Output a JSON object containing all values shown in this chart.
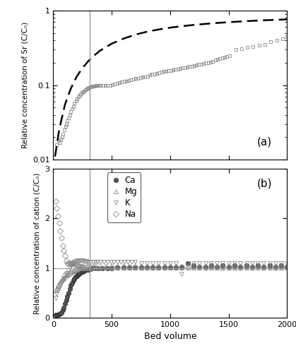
{
  "vline_x": 310,
  "xlim": [
    0,
    2000
  ],
  "panel_a": {
    "ylim_log": [
      0.01,
      1.0
    ],
    "ylabel": "Relative concentration of Sr (C/C₀)",
    "label": "(a)",
    "sr_data": [
      [
        30,
        0.016
      ],
      [
        45,
        0.018
      ],
      [
        55,
        0.017
      ],
      [
        65,
        0.019
      ],
      [
        75,
        0.02
      ],
      [
        85,
        0.022
      ],
      [
        95,
        0.025
      ],
      [
        105,
        0.028
      ],
      [
        115,
        0.03
      ],
      [
        120,
        0.033
      ],
      [
        130,
        0.036
      ],
      [
        140,
        0.04
      ],
      [
        150,
        0.044
      ],
      [
        160,
        0.048
      ],
      [
        170,
        0.052
      ],
      [
        180,
        0.057
      ],
      [
        195,
        0.062
      ],
      [
        205,
        0.065
      ],
      [
        215,
        0.07
      ],
      [
        225,
        0.073
      ],
      [
        235,
        0.077
      ],
      [
        245,
        0.08
      ],
      [
        255,
        0.082
      ],
      [
        265,
        0.084
      ],
      [
        275,
        0.086
      ],
      [
        285,
        0.088
      ],
      [
        295,
        0.09
      ],
      [
        305,
        0.092
      ],
      [
        315,
        0.094
      ],
      [
        325,
        0.095
      ],
      [
        335,
        0.096
      ],
      [
        345,
        0.097
      ],
      [
        355,
        0.098
      ],
      [
        365,
        0.1
      ],
      [
        375,
        0.1
      ],
      [
        385,
        0.1
      ],
      [
        395,
        0.1
      ],
      [
        405,
        0.1
      ],
      [
        425,
        0.1
      ],
      [
        445,
        0.1
      ],
      [
        465,
        0.1
      ],
      [
        485,
        0.1
      ],
      [
        505,
        0.102
      ],
      [
        525,
        0.104
      ],
      [
        545,
        0.106
      ],
      [
        565,
        0.108
      ],
      [
        585,
        0.11
      ],
      [
        605,
        0.112
      ],
      [
        625,
        0.114
      ],
      [
        645,
        0.116
      ],
      [
        665,
        0.118
      ],
      [
        685,
        0.12
      ],
      [
        705,
        0.122
      ],
      [
        725,
        0.124
      ],
      [
        745,
        0.126
      ],
      [
        765,
        0.128
      ],
      [
        785,
        0.13
      ],
      [
        805,
        0.133
      ],
      [
        825,
        0.136
      ],
      [
        845,
        0.139
      ],
      [
        865,
        0.142
      ],
      [
        885,
        0.145
      ],
      [
        905,
        0.148
      ],
      [
        925,
        0.15
      ],
      [
        945,
        0.152
      ],
      [
        965,
        0.154
      ],
      [
        985,
        0.156
      ],
      [
        1005,
        0.158
      ],
      [
        1025,
        0.16
      ],
      [
        1045,
        0.162
      ],
      [
        1065,
        0.165
      ],
      [
        1085,
        0.167
      ],
      [
        1105,
        0.17
      ],
      [
        1125,
        0.172
      ],
      [
        1145,
        0.175
      ],
      [
        1165,
        0.178
      ],
      [
        1185,
        0.18
      ],
      [
        1205,
        0.183
      ],
      [
        1225,
        0.186
      ],
      [
        1245,
        0.189
      ],
      [
        1265,
        0.192
      ],
      [
        1285,
        0.195
      ],
      [
        1305,
        0.198
      ],
      [
        1325,
        0.2
      ],
      [
        1345,
        0.205
      ],
      [
        1365,
        0.21
      ],
      [
        1385,
        0.215
      ],
      [
        1405,
        0.22
      ],
      [
        1425,
        0.225
      ],
      [
        1445,
        0.23
      ],
      [
        1465,
        0.235
      ],
      [
        1485,
        0.24
      ],
      [
        1510,
        0.245
      ],
      [
        1560,
        0.3
      ],
      [
        1610,
        0.31
      ],
      [
        1660,
        0.32
      ],
      [
        1710,
        0.33
      ],
      [
        1760,
        0.34
      ],
      [
        1810,
        0.35
      ],
      [
        1860,
        0.38
      ],
      [
        1910,
        0.4
      ],
      [
        1960,
        0.42
      ],
      [
        2000,
        0.45
      ]
    ],
    "fit_x": [
      15,
      50,
      100,
      150,
      200,
      250,
      300,
      350,
      400,
      500,
      600,
      700,
      800,
      900,
      1000,
      1100,
      1200,
      1300,
      1400,
      1500,
      1600,
      1700,
      1800,
      1900,
      2000
    ],
    "fit_y": [
      0.011,
      0.025,
      0.055,
      0.09,
      0.13,
      0.17,
      0.21,
      0.25,
      0.29,
      0.36,
      0.42,
      0.475,
      0.52,
      0.558,
      0.59,
      0.618,
      0.642,
      0.663,
      0.682,
      0.699,
      0.714,
      0.728,
      0.741,
      0.752,
      0.762
    ]
  },
  "panel_b": {
    "ylim": [
      0,
      3
    ],
    "yticks": [
      0,
      1,
      2,
      3
    ],
    "ylabel": "Relative concentration of cation (C/C₀)",
    "xlabel": "Bed volume",
    "label": "(b)",
    "ca_data": [
      [
        20,
        0.05
      ],
      [
        30,
        0.05
      ],
      [
        40,
        0.06
      ],
      [
        50,
        0.07
      ],
      [
        60,
        0.08
      ],
      [
        70,
        0.1
      ],
      [
        80,
        0.15
      ],
      [
        90,
        0.2
      ],
      [
        100,
        0.28
      ],
      [
        110,
        0.35
      ],
      [
        120,
        0.42
      ],
      [
        130,
        0.5
      ],
      [
        140,
        0.58
      ],
      [
        150,
        0.65
      ],
      [
        160,
        0.7
      ],
      [
        170,
        0.75
      ],
      [
        180,
        0.78
      ],
      [
        190,
        0.82
      ],
      [
        200,
        0.84
      ],
      [
        210,
        0.86
      ],
      [
        220,
        0.88
      ],
      [
        230,
        0.9
      ],
      [
        240,
        0.92
      ],
      [
        250,
        0.93
      ],
      [
        260,
        0.94
      ],
      [
        270,
        0.95
      ],
      [
        280,
        0.96
      ],
      [
        290,
        0.97
      ],
      [
        300,
        0.97
      ],
      [
        310,
        0.98
      ],
      [
        320,
        0.98
      ],
      [
        330,
        0.99
      ],
      [
        340,
        0.99
      ],
      [
        350,
        1.0
      ],
      [
        380,
        1.0
      ],
      [
        420,
        1.0
      ],
      [
        460,
        1.0
      ],
      [
        500,
        1.0
      ],
      [
        550,
        1.01
      ],
      [
        600,
        1.01
      ],
      [
        650,
        1.01
      ],
      [
        700,
        1.01
      ],
      [
        750,
        1.01
      ],
      [
        800,
        1.01
      ],
      [
        850,
        1.01
      ],
      [
        900,
        1.01
      ],
      [
        950,
        1.01
      ],
      [
        1000,
        1.01
      ],
      [
        1050,
        1.01
      ],
      [
        1100,
        1.02
      ],
      [
        1150,
        1.1
      ],
      [
        1200,
        1.05
      ],
      [
        1250,
        1.02
      ],
      [
        1300,
        1.02
      ],
      [
        1350,
        1.05
      ],
      [
        1400,
        1.02
      ],
      [
        1450,
        1.05
      ],
      [
        1500,
        1.02
      ],
      [
        1550,
        1.05
      ],
      [
        1600,
        1.02
      ],
      [
        1650,
        1.05
      ],
      [
        1700,
        1.02
      ],
      [
        1750,
        1.05
      ],
      [
        1800,
        1.02
      ],
      [
        1850,
        1.05
      ],
      [
        1900,
        1.02
      ],
      [
        1950,
        1.05
      ],
      [
        2000,
        1.02
      ]
    ],
    "mg_data": [
      [
        20,
        0.55
      ],
      [
        30,
        0.6
      ],
      [
        40,
        0.65
      ],
      [
        50,
        0.7
      ],
      [
        60,
        0.72
      ],
      [
        70,
        0.75
      ],
      [
        80,
        0.78
      ],
      [
        90,
        0.8
      ],
      [
        100,
        0.83
      ],
      [
        110,
        0.85
      ],
      [
        120,
        0.87
      ],
      [
        130,
        0.88
      ],
      [
        140,
        0.9
      ],
      [
        150,
        0.92
      ],
      [
        160,
        0.93
      ],
      [
        170,
        0.94
      ],
      [
        180,
        0.95
      ],
      [
        190,
        0.96
      ],
      [
        200,
        0.97
      ],
      [
        210,
        0.98
      ],
      [
        220,
        0.99
      ],
      [
        230,
        1.0
      ],
      [
        240,
        1.0
      ],
      [
        250,
        1.0
      ],
      [
        260,
        1.0
      ],
      [
        280,
        1.0
      ],
      [
        300,
        1.0
      ],
      [
        320,
        1.0
      ],
      [
        340,
        1.0
      ],
      [
        360,
        1.0
      ],
      [
        380,
        1.0
      ],
      [
        400,
        1.0
      ],
      [
        450,
        1.01
      ],
      [
        500,
        1.01
      ],
      [
        550,
        1.01
      ],
      [
        600,
        1.01
      ],
      [
        650,
        1.01
      ],
      [
        700,
        1.01
      ],
      [
        750,
        1.01
      ],
      [
        800,
        1.01
      ],
      [
        850,
        1.01
      ],
      [
        900,
        1.01
      ],
      [
        950,
        1.01
      ],
      [
        1000,
        1.01
      ],
      [
        1050,
        1.01
      ],
      [
        1100,
        1.01
      ],
      [
        1150,
        1.01
      ],
      [
        1200,
        1.01
      ],
      [
        1250,
        1.01
      ],
      [
        1300,
        1.01
      ],
      [
        1350,
        1.01
      ],
      [
        1400,
        1.01
      ],
      [
        1450,
        1.01
      ],
      [
        1500,
        1.01
      ],
      [
        1550,
        1.01
      ],
      [
        1600,
        1.01
      ],
      [
        1650,
        1.01
      ],
      [
        1700,
        1.01
      ],
      [
        1750,
        1.01
      ],
      [
        1800,
        1.01
      ],
      [
        1850,
        1.01
      ],
      [
        1900,
        1.01
      ],
      [
        1950,
        1.01
      ],
      [
        2000,
        1.01
      ]
    ],
    "k_data": [
      [
        20,
        0.4
      ],
      [
        30,
        0.48
      ],
      [
        40,
        0.55
      ],
      [
        50,
        0.6
      ],
      [
        60,
        0.65
      ],
      [
        70,
        0.7
      ],
      [
        80,
        0.75
      ],
      [
        90,
        0.8
      ],
      [
        100,
        0.85
      ],
      [
        110,
        0.88
      ],
      [
        120,
        0.9
      ],
      [
        130,
        0.95
      ],
      [
        140,
        1.0
      ],
      [
        150,
        1.05
      ],
      [
        160,
        1.08
      ],
      [
        170,
        1.1
      ],
      [
        180,
        1.12
      ],
      [
        190,
        1.13
      ],
      [
        200,
        1.14
      ],
      [
        210,
        1.15
      ],
      [
        220,
        1.15
      ],
      [
        230,
        1.15
      ],
      [
        240,
        1.15
      ],
      [
        250,
        1.15
      ],
      [
        260,
        1.14
      ],
      [
        270,
        1.13
      ],
      [
        280,
        1.13
      ],
      [
        290,
        1.12
      ],
      [
        300,
        1.12
      ],
      [
        320,
        1.12
      ],
      [
        340,
        1.12
      ],
      [
        360,
        1.12
      ],
      [
        380,
        1.12
      ],
      [
        400,
        1.12
      ],
      [
        430,
        1.12
      ],
      [
        460,
        1.12
      ],
      [
        490,
        1.12
      ],
      [
        520,
        1.12
      ],
      [
        550,
        1.12
      ],
      [
        580,
        1.12
      ],
      [
        610,
        1.12
      ],
      [
        640,
        1.12
      ],
      [
        670,
        1.12
      ],
      [
        700,
        1.12
      ],
      [
        750,
        1.1
      ],
      [
        800,
        1.1
      ],
      [
        850,
        1.1
      ],
      [
        900,
        1.1
      ],
      [
        950,
        1.1
      ],
      [
        1000,
        1.1
      ],
      [
        1050,
        1.1
      ],
      [
        1100,
        0.88
      ],
      [
        1150,
        1.1
      ],
      [
        1200,
        1.1
      ],
      [
        1250,
        1.1
      ],
      [
        1300,
        1.1
      ],
      [
        1350,
        1.1
      ],
      [
        1400,
        1.1
      ],
      [
        1450,
        1.1
      ],
      [
        1500,
        1.1
      ],
      [
        1550,
        1.1
      ],
      [
        1600,
        1.1
      ],
      [
        1650,
        1.1
      ],
      [
        1700,
        1.1
      ],
      [
        1750,
        1.1
      ],
      [
        1800,
        1.1
      ],
      [
        1850,
        1.1
      ],
      [
        1900,
        1.1
      ],
      [
        1950,
        1.1
      ],
      [
        2000,
        1.1
      ]
    ],
    "na_data": [
      [
        20,
        2.35
      ],
      [
        30,
        2.2
      ],
      [
        40,
        2.05
      ],
      [
        50,
        1.9
      ],
      [
        60,
        1.75
      ],
      [
        70,
        1.6
      ],
      [
        80,
        1.45
      ],
      [
        90,
        1.35
      ],
      [
        100,
        1.25
      ],
      [
        110,
        1.15
      ],
      [
        120,
        1.1
      ],
      [
        130,
        1.1
      ],
      [
        140,
        1.1
      ],
      [
        150,
        1.1
      ],
      [
        160,
        1.1
      ],
      [
        170,
        1.1
      ],
      [
        180,
        1.08
      ],
      [
        190,
        1.07
      ],
      [
        200,
        1.06
      ],
      [
        210,
        1.05
      ],
      [
        220,
        1.04
      ],
      [
        230,
        1.03
      ],
      [
        240,
        1.02
      ],
      [
        250,
        1.02
      ],
      [
        260,
        1.02
      ],
      [
        280,
        1.02
      ],
      [
        300,
        1.02
      ],
      [
        320,
        1.02
      ],
      [
        340,
        1.02
      ],
      [
        360,
        1.02
      ],
      [
        400,
        1.02
      ],
      [
        450,
        1.02
      ],
      [
        500,
        1.02
      ],
      [
        550,
        1.02
      ],
      [
        600,
        1.02
      ],
      [
        650,
        1.02
      ],
      [
        700,
        1.02
      ],
      [
        750,
        1.02
      ],
      [
        800,
        1.02
      ],
      [
        850,
        1.02
      ],
      [
        900,
        1.02
      ],
      [
        950,
        1.02
      ],
      [
        1000,
        1.02
      ],
      [
        1050,
        1.02
      ],
      [
        1100,
        1.02
      ],
      [
        1150,
        1.02
      ],
      [
        1200,
        1.02
      ],
      [
        1250,
        1.02
      ],
      [
        1300,
        1.02
      ],
      [
        1350,
        1.02
      ],
      [
        1400,
        1.02
      ],
      [
        1450,
        1.02
      ],
      [
        1500,
        1.02
      ],
      [
        1550,
        1.02
      ],
      [
        1600,
        1.02
      ],
      [
        1650,
        1.02
      ],
      [
        1700,
        1.02
      ],
      [
        1750,
        1.02
      ],
      [
        1800,
        1.02
      ],
      [
        1850,
        1.02
      ],
      [
        1900,
        1.02
      ],
      [
        1950,
        1.02
      ],
      [
        2000,
        1.02
      ]
    ]
  },
  "vline_color": "#999999",
  "marker_color": "#888888",
  "background_color": "#ffffff"
}
